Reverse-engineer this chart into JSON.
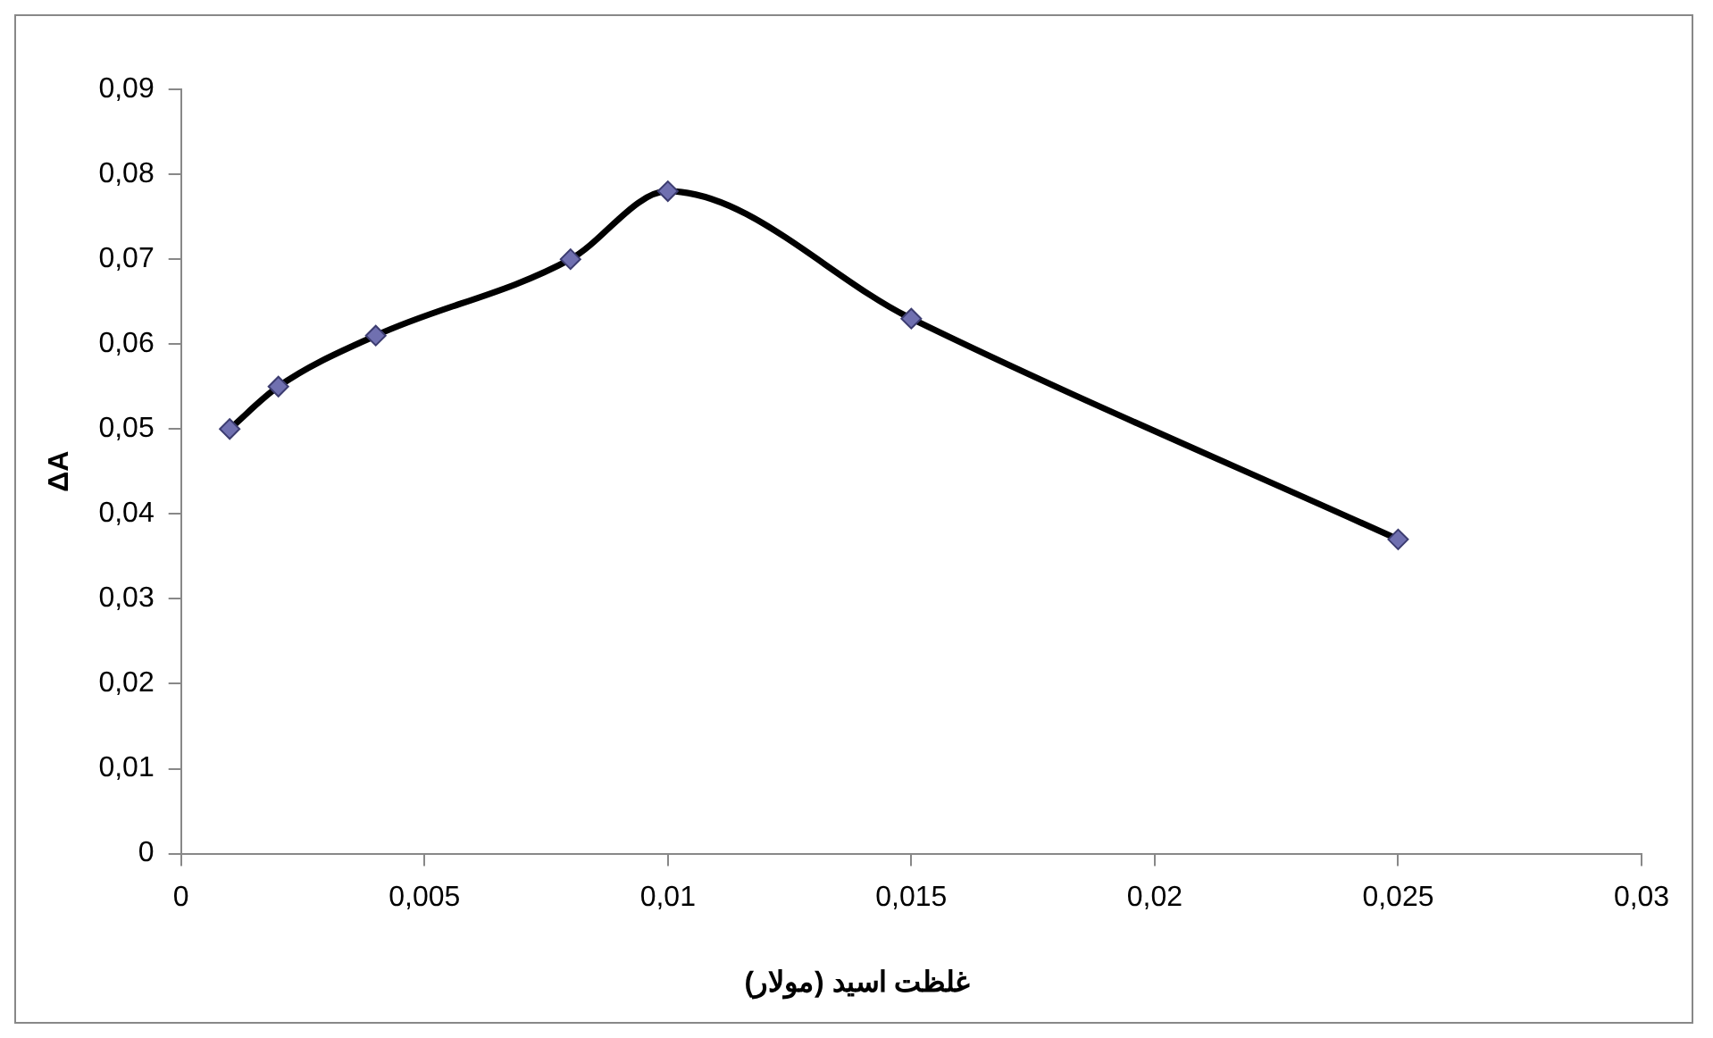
{
  "chart_data": {
    "type": "line",
    "xlabel": "غلظت اسید (مولار)",
    "ylabel": "ΔA",
    "x": [
      0.001,
      0.002,
      0.004,
      0.008,
      0.01,
      0.015,
      0.025
    ],
    "series": [
      {
        "color": "#000000",
        "values": [
          0.05,
          0.055,
          0.061,
          0.07,
          0.078,
          0.063,
          0.037
        ]
      }
    ],
    "xlim": [
      0,
      0.03
    ],
    "xticks": [
      0,
      {
        "value": 0.005,
        "label": "0,005"
      },
      {
        "value": 0.01,
        "label": "0,01"
      },
      {
        "value": 0.015,
        "label": "0,015"
      },
      {
        "value": 0.02,
        "label": "0,02"
      },
      {
        "value": 0.025,
        "label": "0,025"
      },
      {
        "value": 0.03,
        "label": "0,03"
      }
    ],
    "ylim": [
      0,
      0.09
    ],
    "yticks": [
      0,
      {
        "value": 0.01,
        "label": "0,01"
      },
      {
        "value": 0.02,
        "label": "0,02"
      },
      {
        "value": 0.03,
        "label": "0,03"
      },
      {
        "value": 0.04,
        "label": "0,04"
      },
      {
        "value": 0.05,
        "label": "0,05"
      },
      {
        "value": 0.06,
        "label": "0,06"
      },
      {
        "value": 0.07,
        "label": "0,07"
      },
      {
        "value": 0.08,
        "label": "0,08"
      },
      {
        "value": 0.09,
        "label": "0,09"
      }
    ],
    "grid": false,
    "legend": false,
    "marker": "diamond",
    "line_style": "solid"
  }
}
